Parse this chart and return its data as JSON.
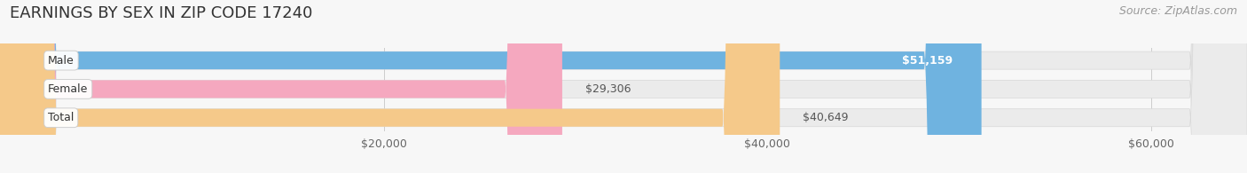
{
  "title": "EARNINGS BY SEX IN ZIP CODE 17240",
  "source": "Source: ZipAtlas.com",
  "categories": [
    "Male",
    "Female",
    "Total"
  ],
  "values": [
    51159,
    29306,
    40649
  ],
  "bar_colors": [
    "#6fb3e0",
    "#f5a8bf",
    "#f5c98a"
  ],
  "value_labels": [
    "$51,159",
    "$29,306",
    "$40,649"
  ],
  "value_inside": [
    true,
    false,
    false
  ],
  "xmin": 0,
  "xmax": 65000,
  "xticks": [
    20000,
    40000,
    60000
  ],
  "xtick_labels": [
    "$20,000",
    "$40,000",
    "$60,000"
  ],
  "background_color": "#f7f7f7",
  "bar_background_color": "#ebebeb",
  "title_fontsize": 13,
  "source_fontsize": 9,
  "bar_height": 0.62,
  "bar_gap": 0.38,
  "figsize": [
    14.06,
    1.95
  ],
  "dpi": 100
}
